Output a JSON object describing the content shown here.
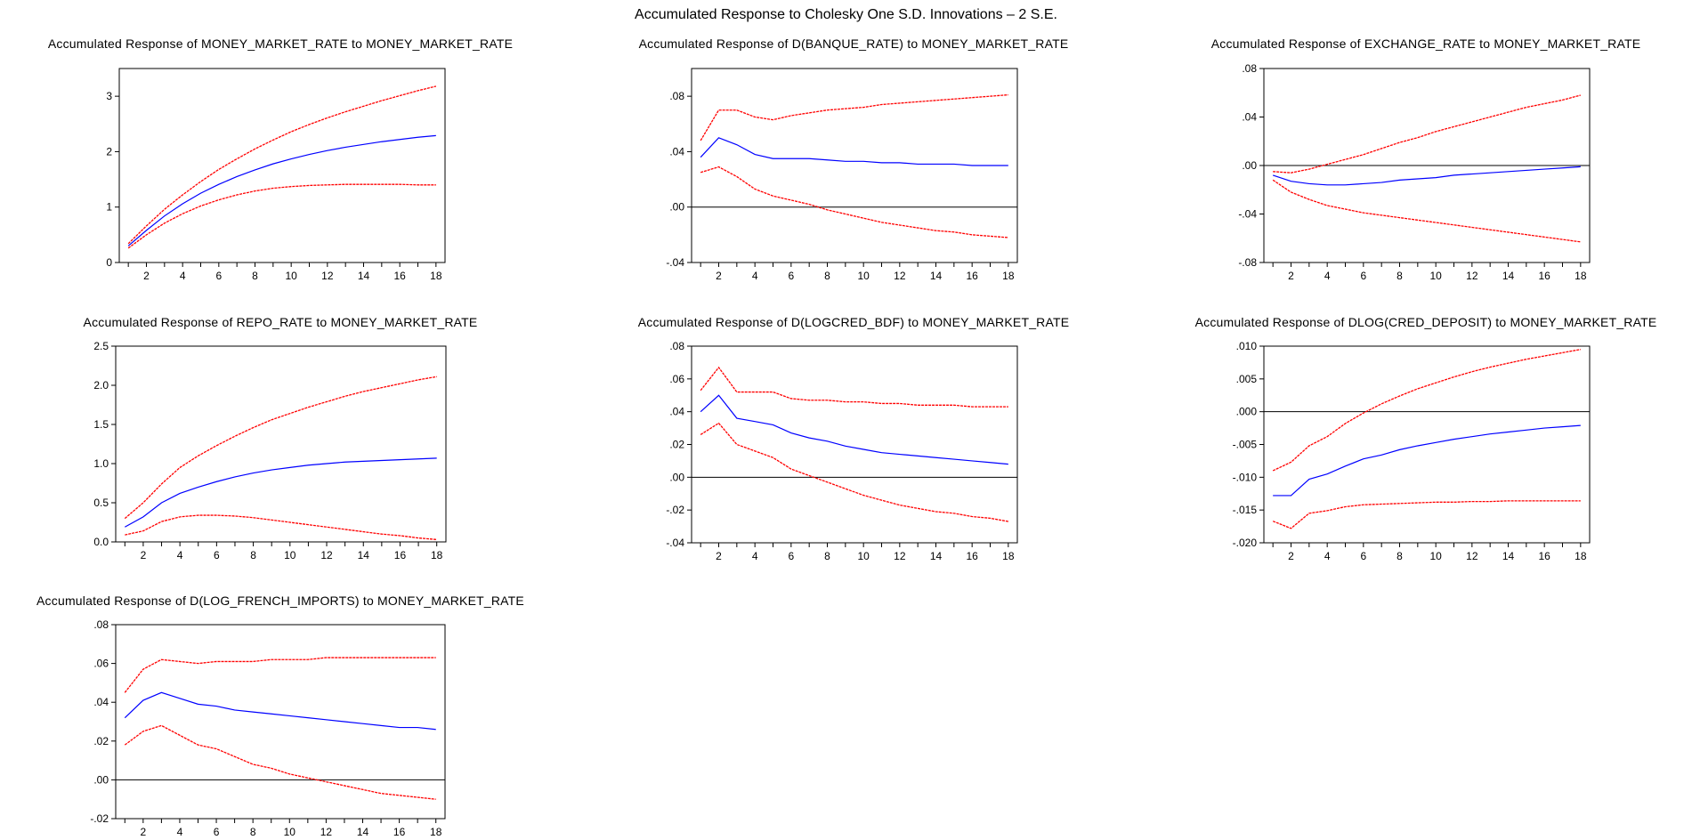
{
  "figure_title": "Accumulated Response to Cholesky One S.D. Innovations – 2 S.E.",
  "colors": {
    "response": "#0000ff",
    "bands": "#ff0000",
    "zero_line": "#000000",
    "frame": "#000000"
  },
  "chart_data": [
    {
      "type": "line",
      "title": "Accumulated Response of MONEY_MARKET_RATE to MONEY_MARKET_RATE",
      "x": [
        1,
        2,
        3,
        4,
        5,
        6,
        7,
        8,
        9,
        10,
        11,
        12,
        13,
        14,
        15,
        16,
        17,
        18
      ],
      "xticks": [
        2,
        4,
        6,
        8,
        10,
        12,
        14,
        16,
        18
      ],
      "ylim": [
        0,
        3.5
      ],
      "yticks": [
        0,
        1,
        2,
        3
      ],
      "ytick_labels": [
        "0",
        "1",
        "2",
        "3"
      ],
      "zero_line": false,
      "series": [
        {
          "role": "response",
          "values": [
            0.3,
            0.58,
            0.84,
            1.06,
            1.25,
            1.41,
            1.55,
            1.67,
            1.78,
            1.87,
            1.95,
            2.02,
            2.08,
            2.13,
            2.18,
            2.22,
            2.26,
            2.29
          ]
        },
        {
          "role": "upper_band",
          "values": [
            0.34,
            0.66,
            0.96,
            1.22,
            1.46,
            1.68,
            1.87,
            2.05,
            2.21,
            2.36,
            2.49,
            2.61,
            2.72,
            2.82,
            2.92,
            3.01,
            3.1,
            3.18
          ]
        },
        {
          "role": "lower_band",
          "values": [
            0.26,
            0.5,
            0.71,
            0.88,
            1.02,
            1.13,
            1.22,
            1.29,
            1.34,
            1.37,
            1.39,
            1.4,
            1.41,
            1.41,
            1.41,
            1.41,
            1.4,
            1.4
          ]
        }
      ]
    },
    {
      "type": "line",
      "title": "Accumulated Response of D(BANQUE_RATE) to MONEY_MARKET_RATE",
      "x": [
        1,
        2,
        3,
        4,
        5,
        6,
        7,
        8,
        9,
        10,
        11,
        12,
        13,
        14,
        15,
        16,
        17,
        18
      ],
      "xticks": [
        2,
        4,
        6,
        8,
        10,
        12,
        14,
        16,
        18
      ],
      "ylim": [
        -0.04,
        0.1
      ],
      "yticks": [
        -0.04,
        0,
        0.04,
        0.08
      ],
      "ytick_labels": [
        "-.04",
        ".00",
        ".04",
        ".08"
      ],
      "zero_line": true,
      "series": [
        {
          "role": "response",
          "values": [
            0.036,
            0.05,
            0.045,
            0.038,
            0.035,
            0.035,
            0.035,
            0.034,
            0.033,
            0.033,
            0.032,
            0.032,
            0.031,
            0.031,
            0.031,
            0.03,
            0.03,
            0.03
          ]
        },
        {
          "role": "upper_band",
          "values": [
            0.048,
            0.07,
            0.07,
            0.065,
            0.063,
            0.066,
            0.068,
            0.07,
            0.071,
            0.072,
            0.074,
            0.075,
            0.076,
            0.077,
            0.078,
            0.079,
            0.08,
            0.081
          ]
        },
        {
          "role": "lower_band",
          "values": [
            0.025,
            0.029,
            0.022,
            0.013,
            0.008,
            0.005,
            0.002,
            -0.002,
            -0.005,
            -0.008,
            -0.011,
            -0.013,
            -0.015,
            -0.017,
            -0.018,
            -0.02,
            -0.021,
            -0.022
          ]
        }
      ]
    },
    {
      "type": "line",
      "title": "Accumulated Response of EXCHANGE_RATE to MONEY_MARKET_RATE",
      "x": [
        1,
        2,
        3,
        4,
        5,
        6,
        7,
        8,
        9,
        10,
        11,
        12,
        13,
        14,
        15,
        16,
        17,
        18
      ],
      "xticks": [
        2,
        4,
        6,
        8,
        10,
        12,
        14,
        16,
        18
      ],
      "ylim": [
        -0.08,
        0.08
      ],
      "yticks": [
        -0.08,
        -0.04,
        0,
        0.04,
        0.08
      ],
      "ytick_labels": [
        "-.08",
        "-.04",
        ".00",
        ".04",
        ".08"
      ],
      "zero_line": true,
      "series": [
        {
          "role": "response",
          "values": [
            -0.008,
            -0.013,
            -0.015,
            -0.016,
            -0.016,
            -0.015,
            -0.014,
            -0.012,
            -0.011,
            -0.01,
            -0.008,
            -0.007,
            -0.006,
            -0.005,
            -0.004,
            -0.003,
            -0.002,
            -0.001
          ]
        },
        {
          "role": "upper_band",
          "values": [
            -0.005,
            -0.006,
            -0.003,
            0.001,
            0.005,
            0.009,
            0.014,
            0.019,
            0.023,
            0.028,
            0.032,
            0.036,
            0.04,
            0.044,
            0.048,
            0.051,
            0.054,
            0.058
          ]
        },
        {
          "role": "lower_band",
          "values": [
            -0.012,
            -0.022,
            -0.028,
            -0.033,
            -0.036,
            -0.039,
            -0.041,
            -0.043,
            -0.045,
            -0.047,
            -0.049,
            -0.051,
            -0.053,
            -0.055,
            -0.057,
            -0.059,
            -0.061,
            -0.063
          ]
        }
      ]
    },
    {
      "type": "line",
      "title": "Accumulated Response of REPO_RATE to MONEY_MARKET_RATE",
      "x": [
        1,
        2,
        3,
        4,
        5,
        6,
        7,
        8,
        9,
        10,
        11,
        12,
        13,
        14,
        15,
        16,
        17,
        18
      ],
      "xticks": [
        2,
        4,
        6,
        8,
        10,
        12,
        14,
        16,
        18
      ],
      "ylim": [
        0,
        2.5
      ],
      "yticks": [
        0,
        0.5,
        1,
        1.5,
        2,
        2.5
      ],
      "ytick_labels": [
        "0.0",
        "0.5",
        "1.0",
        "1.5",
        "2.0",
        "2.5"
      ],
      "zero_line": false,
      "series": [
        {
          "role": "response",
          "values": [
            0.19,
            0.32,
            0.5,
            0.62,
            0.7,
            0.77,
            0.83,
            0.88,
            0.92,
            0.95,
            0.98,
            1.0,
            1.02,
            1.03,
            1.04,
            1.05,
            1.06,
            1.07
          ]
        },
        {
          "role": "upper_band",
          "values": [
            0.3,
            0.5,
            0.74,
            0.95,
            1.1,
            1.23,
            1.35,
            1.46,
            1.56,
            1.64,
            1.72,
            1.79,
            1.86,
            1.92,
            1.97,
            2.02,
            2.07,
            2.11
          ]
        },
        {
          "role": "lower_band",
          "values": [
            0.09,
            0.14,
            0.26,
            0.32,
            0.34,
            0.34,
            0.33,
            0.31,
            0.28,
            0.25,
            0.22,
            0.19,
            0.16,
            0.13,
            0.1,
            0.08,
            0.05,
            0.03
          ]
        }
      ]
    },
    {
      "type": "line",
      "title": "Accumulated Response of D(LOGCRED_BDF) to MONEY_MARKET_RATE",
      "x": [
        1,
        2,
        3,
        4,
        5,
        6,
        7,
        8,
        9,
        10,
        11,
        12,
        13,
        14,
        15,
        16,
        17,
        18
      ],
      "xticks": [
        2,
        4,
        6,
        8,
        10,
        12,
        14,
        16,
        18
      ],
      "ylim": [
        -0.04,
        0.08
      ],
      "yticks": [
        -0.04,
        -0.02,
        0,
        0.02,
        0.04,
        0.06,
        0.08
      ],
      "ytick_labels": [
        "-.04",
        "-.02",
        ".00",
        ".02",
        ".04",
        ".06",
        ".08"
      ],
      "zero_line": true,
      "series": [
        {
          "role": "response",
          "values": [
            0.04,
            0.05,
            0.036,
            0.034,
            0.032,
            0.027,
            0.024,
            0.022,
            0.019,
            0.017,
            0.015,
            0.014,
            0.013,
            0.012,
            0.011,
            0.01,
            0.009,
            0.008
          ]
        },
        {
          "role": "upper_band",
          "values": [
            0.053,
            0.067,
            0.052,
            0.052,
            0.052,
            0.048,
            0.047,
            0.047,
            0.046,
            0.046,
            0.045,
            0.045,
            0.044,
            0.044,
            0.044,
            0.043,
            0.043,
            0.043
          ]
        },
        {
          "role": "lower_band",
          "values": [
            0.026,
            0.033,
            0.02,
            0.016,
            0.012,
            0.005,
            0.001,
            -0.003,
            -0.007,
            -0.011,
            -0.014,
            -0.017,
            -0.019,
            -0.021,
            -0.022,
            -0.024,
            -0.025,
            -0.027
          ]
        }
      ]
    },
    {
      "type": "line",
      "title": "Accumulated Response of DLOG(CRED_DEPOSIT) to MONEY_MARKET_RATE",
      "x": [
        1,
        2,
        3,
        4,
        5,
        6,
        7,
        8,
        9,
        10,
        11,
        12,
        13,
        14,
        15,
        16,
        17,
        18
      ],
      "xticks": [
        2,
        4,
        6,
        8,
        10,
        12,
        14,
        16,
        18
      ],
      "ylim": [
        -0.02,
        0.01
      ],
      "yticks": [
        -0.02,
        -0.015,
        -0.01,
        -0.005,
        0,
        0.005,
        0.01
      ],
      "ytick_labels": [
        "-.020",
        "-.015",
        "-.010",
        "-.005",
        ".000",
        ".005",
        ".010"
      ],
      "zero_line": true,
      "series": [
        {
          "role": "response",
          "values": [
            -0.0128,
            -0.0128,
            -0.0103,
            -0.0095,
            -0.0083,
            -0.0072,
            -0.0066,
            -0.0058,
            -0.0052,
            -0.0047,
            -0.0042,
            -0.0038,
            -0.0034,
            -0.0031,
            -0.0028,
            -0.0025,
            -0.0023,
            -0.0021
          ]
        },
        {
          "role": "upper_band",
          "values": [
            -0.009,
            -0.0077,
            -0.0052,
            -0.0038,
            -0.0018,
            -0.0002,
            0.0012,
            0.0024,
            0.0035,
            0.0044,
            0.0053,
            0.0061,
            0.0068,
            0.0074,
            0.008,
            0.0085,
            0.009,
            0.0095
          ]
        },
        {
          "role": "lower_band",
          "values": [
            -0.0167,
            -0.0178,
            -0.0155,
            -0.0151,
            -0.0145,
            -0.0142,
            -0.0141,
            -0.014,
            -0.0139,
            -0.0138,
            -0.0138,
            -0.0137,
            -0.0137,
            -0.0136,
            -0.0136,
            -0.0136,
            -0.0136,
            -0.0136
          ]
        }
      ]
    },
    {
      "type": "line",
      "title": "Accumulated Response of D(LOG_FRENCH_IMPORTS) to MONEY_MARKET_RATE",
      "x": [
        1,
        2,
        3,
        4,
        5,
        6,
        7,
        8,
        9,
        10,
        11,
        12,
        13,
        14,
        15,
        16,
        17,
        18
      ],
      "xticks": [
        2,
        4,
        6,
        8,
        10,
        12,
        14,
        16,
        18
      ],
      "ylim": [
        -0.02,
        0.08
      ],
      "yticks": [
        -0.02,
        0,
        0.02,
        0.04,
        0.06,
        0.08
      ],
      "ytick_labels": [
        "-.02",
        ".00",
        ".02",
        ".04",
        ".06",
        ".08"
      ],
      "zero_line": true,
      "series": [
        {
          "role": "response",
          "values": [
            0.032,
            0.041,
            0.045,
            0.042,
            0.039,
            0.038,
            0.036,
            0.035,
            0.034,
            0.033,
            0.032,
            0.031,
            0.03,
            0.029,
            0.028,
            0.027,
            0.027,
            0.026
          ]
        },
        {
          "role": "upper_band",
          "values": [
            0.045,
            0.057,
            0.062,
            0.061,
            0.06,
            0.061,
            0.061,
            0.061,
            0.062,
            0.062,
            0.062,
            0.063,
            0.063,
            0.063,
            0.063,
            0.063,
            0.063,
            0.063
          ]
        },
        {
          "role": "lower_band",
          "values": [
            0.018,
            0.025,
            0.028,
            0.023,
            0.018,
            0.016,
            0.012,
            0.008,
            0.006,
            0.003,
            0.001,
            -0.001,
            -0.003,
            -0.005,
            -0.007,
            -0.008,
            -0.009,
            -0.01
          ]
        }
      ]
    }
  ]
}
